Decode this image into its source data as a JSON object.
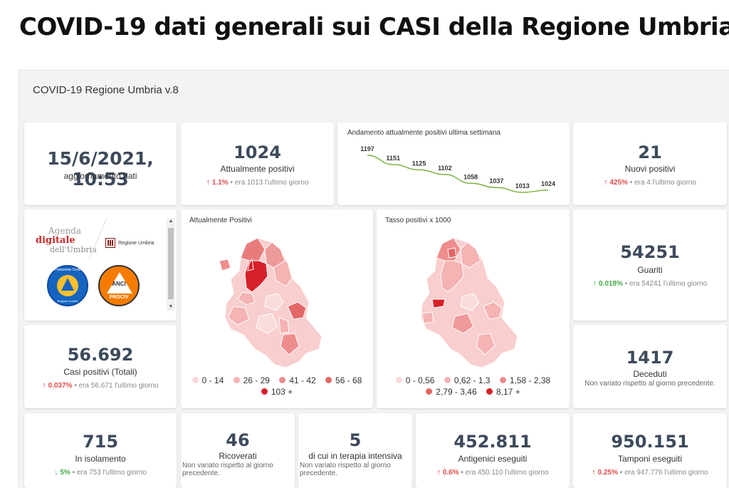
{
  "page_title": "COVID-19 dati generali sui CASI della Regione Umbria",
  "dashboard_title": "COVID-19 Regione Umbria v.8",
  "update": {
    "value": "15/6/2021, 10:53",
    "label": "aggiornamento dati"
  },
  "attualmente_positivi": {
    "value": "1024",
    "label": "Attualmente positivi",
    "pct": "1.1%",
    "prev": "era 1013  l'ultimo giorno",
    "direction": "up"
  },
  "sparkline": {
    "title": "Andamento attualmente positivi ultima settimana",
    "values": [
      1197,
      1151,
      1125,
      1102,
      1058,
      1037,
      1013,
      1024
    ],
    "labels": [
      "1197",
      "1151",
      "1125",
      "1102",
      "1058",
      "1037",
      "1013",
      "1024"
    ],
    "color": "#7cb342"
  },
  "nuovi_positivi": {
    "value": "21",
    "label": "Nuovi positivi",
    "pct": "425%",
    "prev": "era 4  l'ultimo giorno",
    "direction": "up"
  },
  "logos": {
    "agenda_line1": "Agenda",
    "agenda_line2": "digitale",
    "agenda_line3": "dell'Umbria",
    "regione": "Regione Umbria",
    "protezione_civile": "Protezione Civile",
    "protezione_sub": "Regione Umbria",
    "anci": "ANCI",
    "anci_sub": "PROCIV"
  },
  "map_positivi": {
    "title": "Attualmente Positivi",
    "legend": [
      {
        "label": "0 - 14",
        "color": "#fbd9d9"
      },
      {
        "label": "26 - 29",
        "color": "#f5b3b3"
      },
      {
        "label": "41 - 42",
        "color": "#ee8d8d"
      },
      {
        "label": "56 - 68",
        "color": "#e46767"
      },
      {
        "label": "103 +",
        "color": "#d8202a"
      }
    ]
  },
  "map_tasso": {
    "title": "Tasso positivi x 1000",
    "legend": [
      {
        "label": "0 - 0,56",
        "color": "#fbd9d9"
      },
      {
        "label": "0,62 - 1,3",
        "color": "#f5b3b3"
      },
      {
        "label": "1,58 - 2,38",
        "color": "#ee8d8d"
      },
      {
        "label": "2,79 - 3,46",
        "color": "#e46767"
      },
      {
        "label": "8,17 +",
        "color": "#d8202a"
      }
    ]
  },
  "guariti": {
    "value": "54251",
    "label": "Guariti",
    "pct": "0.018%",
    "prev": "era 54241  l'ultimo giorno",
    "direction": "up"
  },
  "casi_totali": {
    "value": "56.692",
    "label": "Casi positivi (Totali)",
    "pct": "0.037%",
    "prev": "era 56.671  l'ultimo giorno",
    "direction": "up"
  },
  "deceduti": {
    "value": "1417",
    "label": "Deceduti",
    "note": "Non variato rispetto al giorno precedente."
  },
  "isolamento": {
    "value": "715",
    "label": "In isolamento",
    "pct": "5%",
    "prev": "era 753  l'ultimo giorno",
    "direction": "down"
  },
  "ricoverati": {
    "value": "46",
    "label": "Ricoverati",
    "note": "Non variato rispetto al giorno precedente."
  },
  "terapia_intensiva": {
    "value": "5",
    "label": "di cui in terapia intensiva",
    "note": "Non variato rispetto al giorno precedente."
  },
  "antigenici": {
    "value": "452.811",
    "label": "Antigenici eseguiti",
    "pct": "0.6%",
    "prev": "era 450.110  l'ultimo giorno",
    "direction": "up"
  },
  "tamponi": {
    "value": "950.151",
    "label": "Tamponi eseguiti",
    "pct": "0.25%",
    "prev": "era 947.776  l'ultimo giorno",
    "direction": "up"
  },
  "icons": {
    "up": "arrow-up-icon",
    "down": "arrow-down-icon"
  },
  "colors": {
    "up": "#e04b4b",
    "down": "#48a848",
    "kpi": "#3d4a5c"
  }
}
